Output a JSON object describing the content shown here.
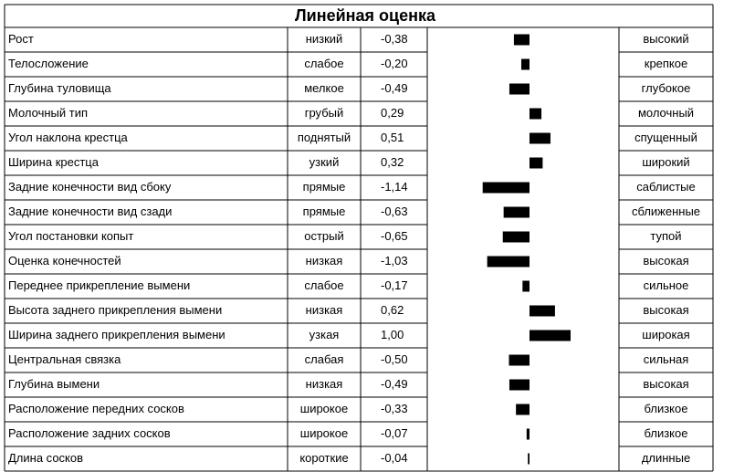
{
  "chart_data": {
    "type": "bar",
    "orientation": "horizontal",
    "title": "Линейная оценка",
    "categories": [
      "Рост",
      "Телосложение",
      "Глубина туловища",
      "Молочный тип",
      "Угол наклона крестца",
      "Ширина крестца",
      "Задние конечности вид сбоку",
      "Задние конечности вид сзади",
      "Угол постановки копыт",
      "Оценка конечностей",
      "Переднее прикрепление вымени",
      "Высота заднего прикрепления вымени",
      "Ширина заднего прикрепления вымени",
      "Центральная связка",
      "Глубина вымени",
      "Расположение передних сосков",
      "Расположение задних сосков",
      "Длина сосков"
    ],
    "low_labels": [
      "низкий",
      "слабое",
      "мелкое",
      "грубый",
      "поднятый",
      "узкий",
      "прямые",
      "прямые",
      "острый",
      "низкая",
      "слабое",
      "низкая",
      "узкая",
      "слабая",
      "низкая",
      "широкое",
      "широкое",
      "короткие"
    ],
    "values": [
      -0.38,
      -0.2,
      -0.49,
      0.29,
      0.51,
      0.32,
      -1.14,
      -0.63,
      -0.65,
      -1.03,
      -0.17,
      0.62,
      1.0,
      -0.5,
      -0.49,
      -0.33,
      -0.07,
      -0.04
    ],
    "value_labels": [
      "-0,38",
      "-0,20",
      "-0,49",
      "0,29",
      "0,51",
      "0,32",
      "-1,14",
      "-0,63",
      "-0,65",
      "-1,03",
      "-0,17",
      "0,62",
      "1,00",
      "-0,50",
      "-0,49",
      "-0,33",
      "-0,07",
      "-0,04"
    ],
    "high_labels": [
      "высокий",
      "крепкое",
      "глубокое",
      "молочный",
      "спущенный",
      "широкий",
      "саблистые",
      "сближенные",
      "тупой",
      "высокая",
      "сильное",
      "высокая",
      "широкая",
      "сильная",
      "высокая",
      "близкое",
      "близкое",
      "длинные"
    ],
    "color": "#000000"
  }
}
